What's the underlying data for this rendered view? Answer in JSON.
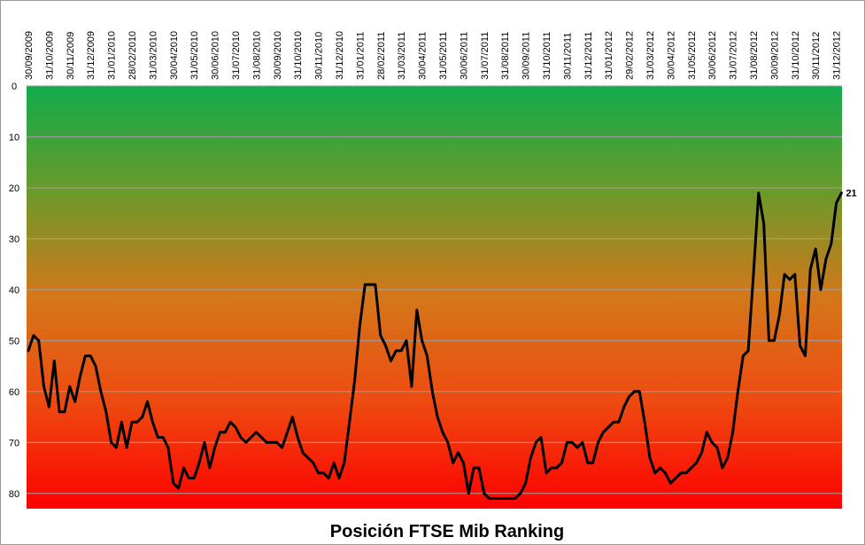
{
  "chart_data": {
    "type": "line",
    "title": "Posición FTSE Mib Ranking",
    "categories": [
      "30/09/2009",
      null,
      null,
      null,
      "31/10/2009",
      null,
      null,
      null,
      "30/11/2009",
      null,
      null,
      null,
      "31/12/2009",
      null,
      null,
      null,
      "31/01/2010",
      null,
      null,
      null,
      "28/02/2010",
      null,
      null,
      null,
      "31/03/2010",
      null,
      null,
      null,
      "30/04/2010",
      null,
      null,
      null,
      "31/05/2010",
      null,
      null,
      null,
      "30/06/2010",
      null,
      null,
      null,
      "31/07/2010",
      null,
      null,
      null,
      "31/08/2010",
      null,
      null,
      null,
      "30/09/2010",
      null,
      null,
      null,
      "31/10/2010",
      null,
      null,
      null,
      "30/11/2010",
      null,
      null,
      null,
      "31/12/2010",
      null,
      null,
      null,
      "31/01/2011",
      null,
      null,
      null,
      "28/02/2011",
      null,
      null,
      null,
      "31/03/2011",
      null,
      null,
      null,
      "30/04/2011",
      null,
      null,
      null,
      "31/05/2011",
      null,
      null,
      null,
      "30/06/2011",
      null,
      null,
      null,
      "31/07/2011",
      null,
      null,
      null,
      "31/08/2011",
      null,
      null,
      null,
      "30/09/2011",
      null,
      null,
      null,
      "31/10/2011",
      null,
      null,
      null,
      "30/11/2011",
      null,
      null,
      null,
      "31/12/2011",
      null,
      null,
      null,
      "31/01/2012",
      null,
      null,
      null,
      "29/02/2012",
      null,
      null,
      null,
      "31/03/2012",
      null,
      null,
      null,
      "30/04/2012",
      null,
      null,
      null,
      "31/05/2012",
      null,
      null,
      null,
      "30/06/2012",
      null,
      null,
      null,
      "31/07/2012",
      null,
      null,
      null,
      "31/08/2012",
      null,
      null,
      null,
      "30/09/2012",
      null,
      null,
      null,
      "31/10/2012",
      null,
      null,
      null,
      "30/11/2012",
      null,
      null,
      null,
      "31/12/2012",
      null
    ],
    "values": [
      52,
      49,
      50,
      59,
      63,
      54,
      64,
      64,
      59,
      62,
      57,
      53,
      53,
      55,
      60,
      64,
      70,
      71,
      66,
      71,
      66,
      66,
      65,
      62,
      66,
      69,
      69,
      71,
      78,
      79,
      75,
      77,
      77,
      74,
      70,
      75,
      71,
      68,
      68,
      66,
      67,
      69,
      70,
      69,
      68,
      69,
      70,
      70,
      70,
      71,
      68,
      65,
      69,
      72,
      73,
      74,
      76,
      76,
      77,
      74,
      77,
      74,
      66,
      58,
      47,
      39,
      39,
      39,
      49,
      51,
      54,
      52,
      52,
      50,
      59,
      44,
      50,
      53,
      60,
      65,
      68,
      70,
      74,
      72,
      74,
      80,
      75,
      75,
      80,
      81,
      81,
      81,
      81,
      81,
      81,
      80,
      78,
      73,
      70,
      69,
      76,
      75,
      75,
      74,
      70,
      70,
      71,
      70,
      74,
      74,
      70,
      68,
      67,
      66,
      66,
      63,
      61,
      60,
      60,
      66,
      73,
      76,
      75,
      76,
      78,
      77,
      76,
      76,
      75,
      74,
      72,
      68,
      70,
      71,
      75,
      73,
      68,
      60,
      53,
      52,
      37,
      21,
      27,
      50,
      50,
      45,
      37,
      38,
      37,
      51,
      53,
      36,
      32,
      40,
      34,
      31,
      23,
      21
    ],
    "color": "#000000",
    "label_last": true,
    "label_color": "#c00000",
    "ylim": [
      83,
      0
    ],
    "yticks": [
      0,
      10,
      20,
      30,
      40,
      50,
      60,
      70,
      80
    ],
    "grid": true
  }
}
